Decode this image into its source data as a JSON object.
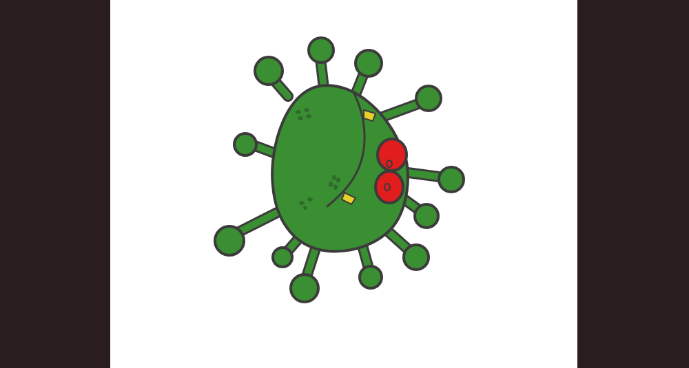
{
  "colors": {
    "letterbox": "#2a1d1e",
    "background": "#ffffff",
    "virus_fill": "#3a8f33",
    "outline": "#3c3a3a",
    "eye_fill": "#e21d1d",
    "tooth_fill": "#e8d02c"
  },
  "illustration": {
    "subject": "cartoon-virus",
    "icon": "virus-icon"
  }
}
